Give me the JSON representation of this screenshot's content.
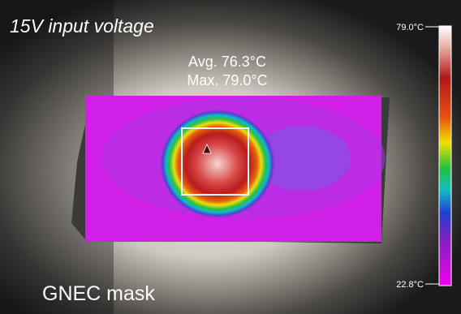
{
  "title": "15V input voltage",
  "readout": {
    "avg": "Avg. 76.3°C",
    "max": "Max. 79.0°C"
  },
  "scale": {
    "top": "79.0°C",
    "bottom": "22.8°C"
  },
  "caption": "GNEC mask"
}
